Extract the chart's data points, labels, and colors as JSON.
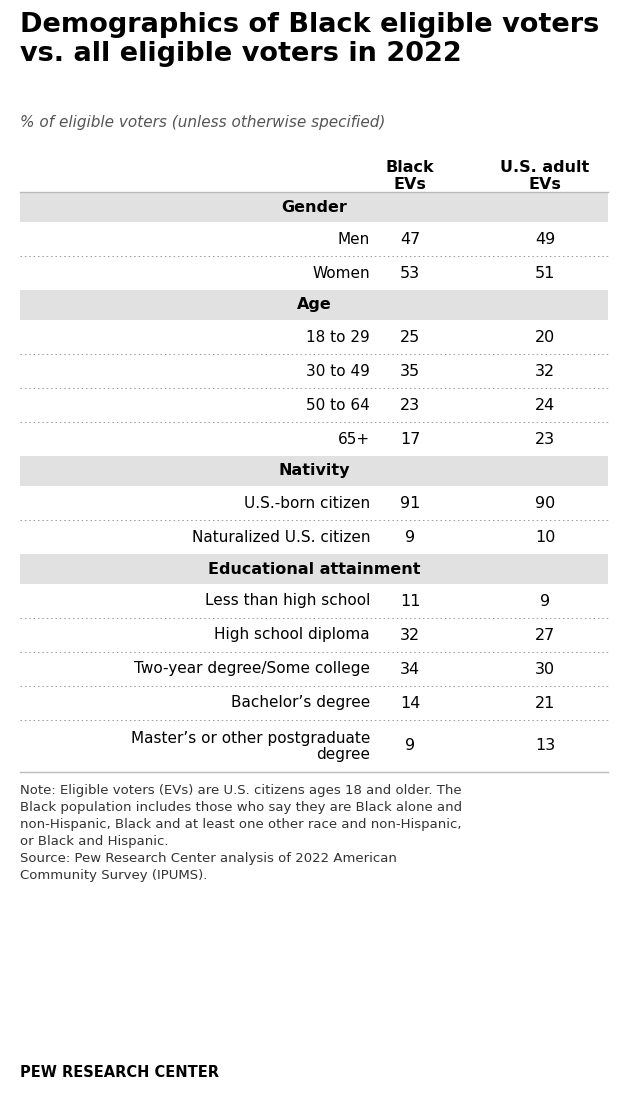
{
  "title": "Demographics of Black eligible voters\nvs. all eligible voters in 2022",
  "subtitle": "% of eligible voters (unless otherwise specified)",
  "col_headers": [
    "Black\nEVs",
    "U.S. adult\nEVs"
  ],
  "sections": [
    {
      "header": "Gender",
      "rows": [
        {
          "label": "Men",
          "black": "47",
          "us": "49"
        },
        {
          "label": "Women",
          "black": "53",
          "us": "51"
        }
      ]
    },
    {
      "header": "Age",
      "rows": [
        {
          "label": "18 to 29",
          "black": "25",
          "us": "20"
        },
        {
          "label": "30 to 49",
          "black": "35",
          "us": "32"
        },
        {
          "label": "50 to 64",
          "black": "23",
          "us": "24"
        },
        {
          "label": "65+",
          "black": "17",
          "us": "23"
        }
      ]
    },
    {
      "header": "Nativity",
      "rows": [
        {
          "label": "U.S.-born citizen",
          "black": "91",
          "us": "90"
        },
        {
          "label": "Naturalized U.S. citizen",
          "black": "9",
          "us": "10"
        }
      ]
    },
    {
      "header": "Educational attainment",
      "rows": [
        {
          "label": "Less than high school",
          "black": "11",
          "us": "9"
        },
        {
          "label": "High school diploma",
          "black": "32",
          "us": "27"
        },
        {
          "label": "Two-year degree/Some college",
          "black": "34",
          "us": "30"
        },
        {
          "label": "Bachelor’s degree",
          "black": "14",
          "us": "21"
        },
        {
          "label": "Master’s or other postgraduate\ndegree",
          "black": "9",
          "us": "13"
        }
      ]
    }
  ],
  "note_line1": "Note: Eligible voters (EVs) are U.S. citizens ages 18 and older. The",
  "note_line2": "Black population includes those who say they are Black alone and",
  "note_line3": "non-Hispanic, Black and at least one other race and non-Hispanic,",
  "note_line4": "or Black and Hispanic.",
  "note_line5": "Source: Pew Research Center analysis of 2022 American",
  "note_line6": "Community Survey (IPUMS).",
  "footer": "PEW RESEARCH CENTER",
  "header_bg": "#e1e1e1",
  "bg_color": "#ffffff",
  "text_color": "#000000",
  "dotted_line_color": "#999999"
}
